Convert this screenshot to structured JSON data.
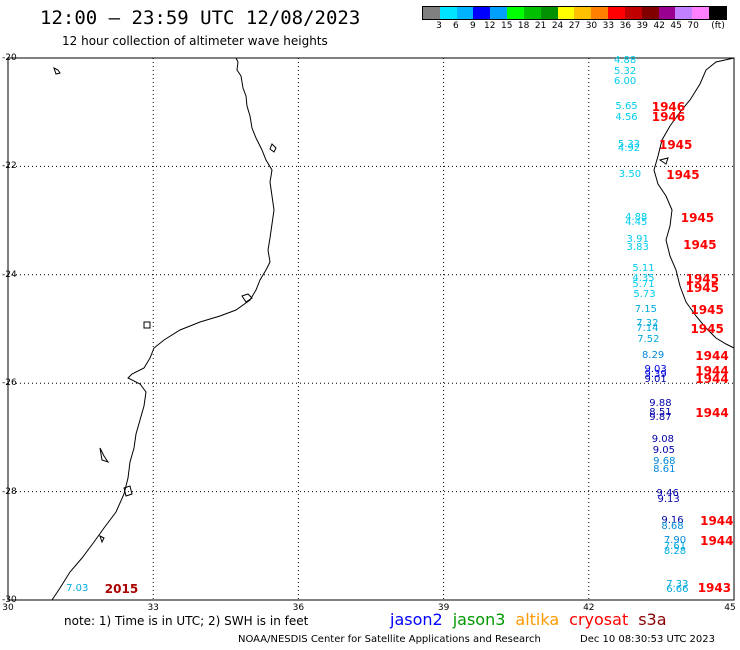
{
  "header": {
    "title": "12:00 – 23:59 UTC 12/08/2023",
    "subtitle": "12 hour collection of altimeter wave heights"
  },
  "colorbar": {
    "colors": [
      "#808080",
      "#00e5ff",
      "#00b3ff",
      "#0000ff",
      "#00a0ff",
      "#00ff00",
      "#00c000",
      "#009000",
      "#ffff00",
      "#ffc000",
      "#ff8000",
      "#ff0000",
      "#c00000",
      "#800000",
      "#9a0090",
      "#c080ff",
      "#ff80ff",
      "#000000"
    ],
    "labels": [
      "3",
      "6",
      "9",
      "12",
      "15",
      "18",
      "21",
      "24",
      "27",
      "30",
      "33",
      "36",
      "39",
      "42",
      "45",
      "70",
      "(ft)"
    ]
  },
  "map": {
    "lon_range": [
      30,
      45
    ],
    "lat_range": [
      -30,
      -20
    ],
    "lon_ticks": [
      "30",
      "33",
      "36",
      "39",
      "42",
      "45"
    ],
    "lat_ticks": [
      "-20",
      "-22",
      "-24",
      "-26",
      "-28",
      "-30"
    ],
    "grid": "dotted"
  },
  "observations": [
    {
      "text": "4.88",
      "color": "#00ccee",
      "lon": 42.52,
      "lat": -20.05
    },
    {
      "text": "5.32",
      "color": "#00ccee",
      "lon": 42.52,
      "lat": -20.25
    },
    {
      "text": "6.00",
      "color": "#00ccee",
      "lon": 42.52,
      "lat": -20.45
    },
    {
      "text": "5.65",
      "color": "#00ccee",
      "lon": 42.55,
      "lat": -20.9
    },
    {
      "text": "4.56",
      "color": "#00ccee",
      "lon": 42.55,
      "lat": -21.1
    },
    {
      "text": "5.33",
      "color": "#00ccee",
      "lon": 42.6,
      "lat": -21.6
    },
    {
      "text": "4.92",
      "color": "#00ccee",
      "lon": 42.6,
      "lat": -21.68
    },
    {
      "text": "3.50",
      "color": "#00ccee",
      "lon": 42.62,
      "lat": -22.15
    },
    {
      "text": "4.88",
      "color": "#00ccee",
      "lon": 42.75,
      "lat": -22.95
    },
    {
      "text": "4.45",
      "color": "#00ccee",
      "lon": 42.75,
      "lat": -23.05
    },
    {
      "text": "3.91",
      "color": "#00ccee",
      "lon": 42.78,
      "lat": -23.35
    },
    {
      "text": "3.83",
      "color": "#00ccee",
      "lon": 42.78,
      "lat": -23.5
    },
    {
      "text": "5.11",
      "color": "#00ccee",
      "lon": 42.9,
      "lat": -23.9
    },
    {
      "text": "4.35",
      "color": "#00ccee",
      "lon": 42.9,
      "lat": -24.08
    },
    {
      "text": "5.71",
      "color": "#00ccee",
      "lon": 42.9,
      "lat": -24.18
    },
    {
      "text": "5.73",
      "color": "#00ccee",
      "lon": 42.92,
      "lat": -24.38
    },
    {
      "text": "7.15",
      "color": "#00aadd",
      "lon": 42.95,
      "lat": -24.65
    },
    {
      "text": "7.32",
      "color": "#00aadd",
      "lon": 42.98,
      "lat": -24.9
    },
    {
      "text": "7.14",
      "color": "#00aadd",
      "lon": 42.98,
      "lat": -25.0
    },
    {
      "text": "7.52",
      "color": "#00aadd",
      "lon": 43.0,
      "lat": -25.2
    },
    {
      "text": "8.29",
      "color": "#0088dd",
      "lon": 43.1,
      "lat": -25.5
    },
    {
      "text": "9.03",
      "color": "#0000ee",
      "lon": 43.15,
      "lat": -25.75
    },
    {
      "text": "9.39",
      "color": "#0000ee",
      "lon": 43.15,
      "lat": -25.85
    },
    {
      "text": "9.01",
      "color": "#0000aa",
      "lon": 43.15,
      "lat": -25.95
    },
    {
      "text": "9.88",
      "color": "#0000aa",
      "lon": 43.25,
      "lat": -26.38
    },
    {
      "text": "8.51",
      "color": "#0000aa",
      "lon": 43.25,
      "lat": -26.55
    },
    {
      "text": "9.87",
      "color": "#0000aa",
      "lon": 43.25,
      "lat": -26.65
    },
    {
      "text": "9.08",
      "color": "#0000aa",
      "lon": 43.3,
      "lat": -27.05
    },
    {
      "text": "9.05",
      "color": "#0000aa",
      "lon": 43.32,
      "lat": -27.25
    },
    {
      "text": "9.68",
      "color": "#0088dd",
      "lon": 43.33,
      "lat": -27.45
    },
    {
      "text": "8.61",
      "color": "#0088dd",
      "lon": 43.33,
      "lat": -27.6
    },
    {
      "text": "9.46",
      "color": "#0000aa",
      "lon": 43.4,
      "lat": -28.05
    },
    {
      "text": "9.13",
      "color": "#0000aa",
      "lon": 43.42,
      "lat": -28.15
    },
    {
      "text": "9.16",
      "color": "#0000aa",
      "lon": 43.5,
      "lat": -28.55
    },
    {
      "text": "8.68",
      "color": "#0088dd",
      "lon": 43.5,
      "lat": -28.65
    },
    {
      "text": "7.90",
      "color": "#0088dd",
      "lon": 43.55,
      "lat": -28.92
    },
    {
      "text": "7.61",
      "color": "#00aadd",
      "lon": 43.55,
      "lat": -29.02
    },
    {
      "text": "8.28",
      "color": "#00aadd",
      "lon": 43.55,
      "lat": -29.12
    },
    {
      "text": "7.33",
      "color": "#00aadd",
      "lon": 43.6,
      "lat": -29.72
    },
    {
      "text": "6.66",
      "color": "#00aadd",
      "lon": 43.6,
      "lat": -29.82
    },
    {
      "text": "7.03",
      "color": "#00aadd",
      "lon": 31.2,
      "lat": -29.8
    }
  ],
  "passes": [
    {
      "text": "1946",
      "color": "#ff0000",
      "lon": 43.3,
      "lat": -20.9
    },
    {
      "text": "1946",
      "color": "#ff0000",
      "lon": 43.3,
      "lat": -21.08
    },
    {
      "text": "1945",
      "color": "#ff0000",
      "lon": 43.45,
      "lat": -21.6
    },
    {
      "text": "1945",
      "color": "#ff0000",
      "lon": 43.6,
      "lat": -22.15
    },
    {
      "text": "1945",
      "color": "#ff0000",
      "lon": 43.9,
      "lat": -22.95
    },
    {
      "text": "1945",
      "color": "#ff0000",
      "lon": 43.95,
      "lat": -23.45
    },
    {
      "text": "1945",
      "color": "#ff0000",
      "lon": 44.0,
      "lat": -24.08
    },
    {
      "text": "1945",
      "color": "#ff0000",
      "lon": 44.0,
      "lat": -24.25
    },
    {
      "text": "1945",
      "color": "#ff0000",
      "lon": 44.1,
      "lat": -24.65
    },
    {
      "text": "1945",
      "color": "#ff0000",
      "lon": 44.1,
      "lat": -25.0
    },
    {
      "text": "1944",
      "color": "#ff0000",
      "lon": 44.2,
      "lat": -25.5
    },
    {
      "text": "1944",
      "color": "#ff0000",
      "lon": 44.2,
      "lat": -25.78
    },
    {
      "text": "1944",
      "color": "#ff0000",
      "lon": 44.2,
      "lat": -25.92
    },
    {
      "text": "1944",
      "color": "#ff0000",
      "lon": 44.2,
      "lat": -26.55
    },
    {
      "text": "1944",
      "color": "#ff0000",
      "lon": 44.3,
      "lat": -28.55
    },
    {
      "text": "1944",
      "color": "#ff0000",
      "lon": 44.3,
      "lat": -28.92
    },
    {
      "text": "1943",
      "color": "#ff0000",
      "lon": 44.25,
      "lat": -29.78
    },
    {
      "text": "2015",
      "color": "#aa0000",
      "lon": 32.0,
      "lat": -29.8
    }
  ],
  "footer": {
    "note": "note: 1) Time is in UTC; 2) SWH is in feet",
    "satellites": [
      {
        "label": "jason2",
        "color": "#0000ff"
      },
      {
        "label": "jason3",
        "color": "#009900"
      },
      {
        "label": "altika",
        "color": "#ff9900"
      },
      {
        "label": "cryosat",
        "color": "#ff0000"
      },
      {
        "label": "s3a",
        "color": "#880000"
      }
    ],
    "credit": "NOAA/NESDIS Center for Satellite Applications and Research",
    "generated": "Dec 10 08:30:53 UTC 2023"
  }
}
